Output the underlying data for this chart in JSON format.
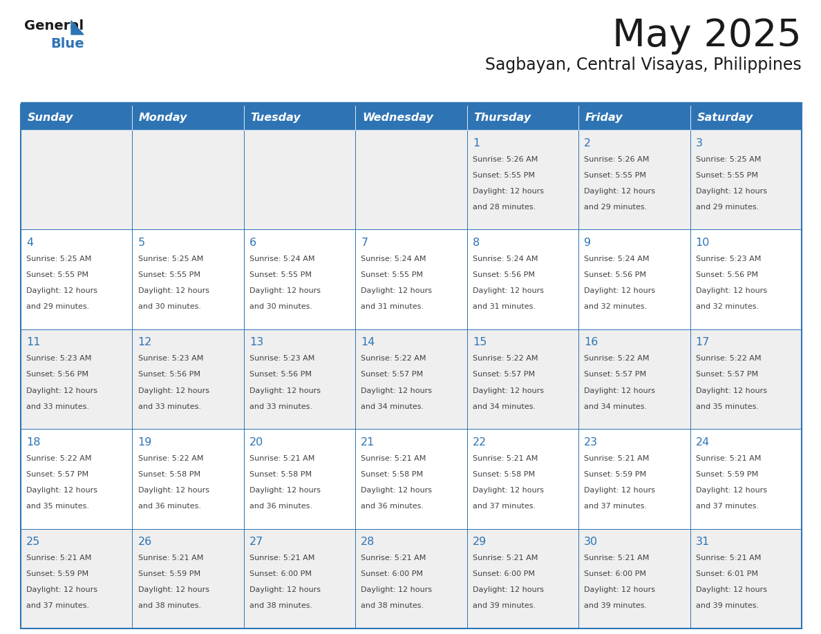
{
  "title": "May 2025",
  "subtitle": "Sagbayan, Central Visayas, Philippines",
  "days_of_week": [
    "Sunday",
    "Monday",
    "Tuesday",
    "Wednesday",
    "Thursday",
    "Friday",
    "Saturday"
  ],
  "header_bg": "#2E74B5",
  "header_text_color": "#FFFFFF",
  "cell_bg_white": "#FFFFFF",
  "cell_bg_gray": "#EFEFEF",
  "cell_border_color": "#2E74B5",
  "day_num_color": "#2E74B5",
  "cell_text_color": "#404040",
  "title_color": "#1a1a1a",
  "subtitle_color": "#1a1a1a",
  "logo_general_color": "#1a1a1a",
  "logo_blue_color": "#2E74B5",
  "calendar_data": [
    [
      null,
      null,
      null,
      null,
      {
        "day": 1,
        "sunrise": "5:26 AM",
        "sunset": "5:55 PM",
        "daylight_h": "12",
        "daylight_m": "28"
      },
      {
        "day": 2,
        "sunrise": "5:26 AM",
        "sunset": "5:55 PM",
        "daylight_h": "12",
        "daylight_m": "29"
      },
      {
        "day": 3,
        "sunrise": "5:25 AM",
        "sunset": "5:55 PM",
        "daylight_h": "12",
        "daylight_m": "29"
      }
    ],
    [
      {
        "day": 4,
        "sunrise": "5:25 AM",
        "sunset": "5:55 PM",
        "daylight_h": "12",
        "daylight_m": "29"
      },
      {
        "day": 5,
        "sunrise": "5:25 AM",
        "sunset": "5:55 PM",
        "daylight_h": "12",
        "daylight_m": "30"
      },
      {
        "day": 6,
        "sunrise": "5:24 AM",
        "sunset": "5:55 PM",
        "daylight_h": "12",
        "daylight_m": "30"
      },
      {
        "day": 7,
        "sunrise": "5:24 AM",
        "sunset": "5:55 PM",
        "daylight_h": "12",
        "daylight_m": "31"
      },
      {
        "day": 8,
        "sunrise": "5:24 AM",
        "sunset": "5:56 PM",
        "daylight_h": "12",
        "daylight_m": "31"
      },
      {
        "day": 9,
        "sunrise": "5:24 AM",
        "sunset": "5:56 PM",
        "daylight_h": "12",
        "daylight_m": "32"
      },
      {
        "day": 10,
        "sunrise": "5:23 AM",
        "sunset": "5:56 PM",
        "daylight_h": "12",
        "daylight_m": "32"
      }
    ],
    [
      {
        "day": 11,
        "sunrise": "5:23 AM",
        "sunset": "5:56 PM",
        "daylight_h": "12",
        "daylight_m": "33"
      },
      {
        "day": 12,
        "sunrise": "5:23 AM",
        "sunset": "5:56 PM",
        "daylight_h": "12",
        "daylight_m": "33"
      },
      {
        "day": 13,
        "sunrise": "5:23 AM",
        "sunset": "5:56 PM",
        "daylight_h": "12",
        "daylight_m": "33"
      },
      {
        "day": 14,
        "sunrise": "5:22 AM",
        "sunset": "5:57 PM",
        "daylight_h": "12",
        "daylight_m": "34"
      },
      {
        "day": 15,
        "sunrise": "5:22 AM",
        "sunset": "5:57 PM",
        "daylight_h": "12",
        "daylight_m": "34"
      },
      {
        "day": 16,
        "sunrise": "5:22 AM",
        "sunset": "5:57 PM",
        "daylight_h": "12",
        "daylight_m": "34"
      },
      {
        "day": 17,
        "sunrise": "5:22 AM",
        "sunset": "5:57 PM",
        "daylight_h": "12",
        "daylight_m": "35"
      }
    ],
    [
      {
        "day": 18,
        "sunrise": "5:22 AM",
        "sunset": "5:57 PM",
        "daylight_h": "12",
        "daylight_m": "35"
      },
      {
        "day": 19,
        "sunrise": "5:22 AM",
        "sunset": "5:58 PM",
        "daylight_h": "12",
        "daylight_m": "36"
      },
      {
        "day": 20,
        "sunrise": "5:21 AM",
        "sunset": "5:58 PM",
        "daylight_h": "12",
        "daylight_m": "36"
      },
      {
        "day": 21,
        "sunrise": "5:21 AM",
        "sunset": "5:58 PM",
        "daylight_h": "12",
        "daylight_m": "36"
      },
      {
        "day": 22,
        "sunrise": "5:21 AM",
        "sunset": "5:58 PM",
        "daylight_h": "12",
        "daylight_m": "37"
      },
      {
        "day": 23,
        "sunrise": "5:21 AM",
        "sunset": "5:59 PM",
        "daylight_h": "12",
        "daylight_m": "37"
      },
      {
        "day": 24,
        "sunrise": "5:21 AM",
        "sunset": "5:59 PM",
        "daylight_h": "12",
        "daylight_m": "37"
      }
    ],
    [
      {
        "day": 25,
        "sunrise": "5:21 AM",
        "sunset": "5:59 PM",
        "daylight_h": "12",
        "daylight_m": "37"
      },
      {
        "day": 26,
        "sunrise": "5:21 AM",
        "sunset": "5:59 PM",
        "daylight_h": "12",
        "daylight_m": "38"
      },
      {
        "day": 27,
        "sunrise": "5:21 AM",
        "sunset": "6:00 PM",
        "daylight_h": "12",
        "daylight_m": "38"
      },
      {
        "day": 28,
        "sunrise": "5:21 AM",
        "sunset": "6:00 PM",
        "daylight_h": "12",
        "daylight_m": "38"
      },
      {
        "day": 29,
        "sunrise": "5:21 AM",
        "sunset": "6:00 PM",
        "daylight_h": "12",
        "daylight_m": "39"
      },
      {
        "day": 30,
        "sunrise": "5:21 AM",
        "sunset": "6:00 PM",
        "daylight_h": "12",
        "daylight_m": "39"
      },
      {
        "day": 31,
        "sunrise": "5:21 AM",
        "sunset": "6:01 PM",
        "daylight_h": "12",
        "daylight_m": "39"
      }
    ]
  ]
}
